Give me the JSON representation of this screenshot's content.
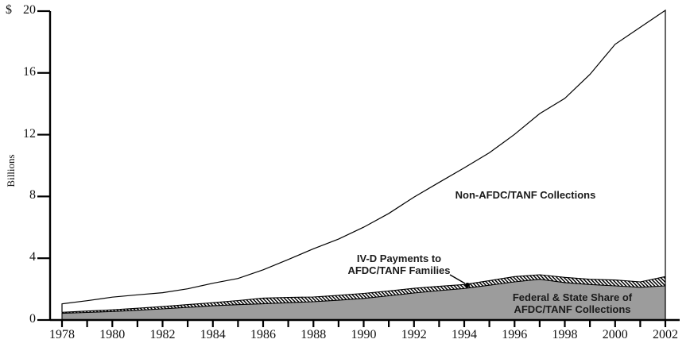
{
  "figure": {
    "y_axis": {
      "currency_prefix": "$",
      "axis_label": "Billions",
      "tick_values": [
        0,
        4,
        8,
        12,
        16,
        20
      ]
    },
    "x_axis": {
      "labeled_years": [
        1978,
        1980,
        1982,
        1984,
        1986,
        1988,
        1990,
        1992,
        1994,
        1996,
        1998,
        2000,
        2002
      ]
    },
    "annotations": {
      "non_afdc": "Non-AFDC/TANF Collections",
      "ivd_line1": "IV-D Payments to",
      "ivd_line2": "AFDC/TANF Families",
      "fed_line1": "Federal & State Share of",
      "fed_line2": "AFDC/TANF Collections"
    },
    "colors": {
      "gray_fill": "#9c9c9c",
      "line": "#000000",
      "hatch_stripe": "#000000",
      "background": "#ffffff"
    }
  },
  "chart_data": {
    "type": "area",
    "title": "",
    "unit": "$ Billions",
    "ylabel": "Billions",
    "xlim": [
      1978,
      2002
    ],
    "ylim": [
      0,
      20
    ],
    "grid": false,
    "legend_position": "in-plot annotations",
    "x": [
      1978,
      1979,
      1980,
      1981,
      1982,
      1983,
      1984,
      1985,
      1986,
      1987,
      1988,
      1989,
      1990,
      1991,
      1992,
      1993,
      1994,
      1995,
      1996,
      1997,
      1998,
      1999,
      2000,
      2001,
      2002
    ],
    "series": [
      {
        "name": "Federal & State Share of AFDC/TANF Collections",
        "style": "solid-gray-area",
        "values": [
          0.43,
          0.49,
          0.55,
          0.63,
          0.72,
          0.82,
          0.92,
          0.99,
          1.05,
          1.12,
          1.18,
          1.28,
          1.4,
          1.57,
          1.75,
          1.9,
          2.04,
          2.25,
          2.47,
          2.64,
          2.42,
          2.3,
          2.21,
          2.12,
          2.21
        ]
      },
      {
        "name": "IV-D Payments to AFDC/TANF Families",
        "style": "hatched-band",
        "note": "band between Federal & State share and total AFDC/TANF collections; top of band (cumulative) listed",
        "values": [
          0.5,
          0.58,
          0.66,
          0.76,
          0.87,
          1.0,
          1.12,
          1.26,
          1.42,
          1.46,
          1.49,
          1.6,
          1.72,
          1.88,
          2.05,
          2.18,
          2.3,
          2.55,
          2.81,
          2.93,
          2.76,
          2.64,
          2.59,
          2.47,
          2.81
        ]
      },
      {
        "name": "Non-AFDC/TANF Collections",
        "style": "white-band-topline",
        "note": "band between AFDC/TANF total and total collections; top line (total collections) listed",
        "values": [
          1.05,
          1.25,
          1.48,
          1.63,
          1.77,
          2.02,
          2.38,
          2.69,
          3.25,
          3.92,
          4.61,
          5.24,
          6.01,
          6.9,
          7.96,
          8.91,
          9.85,
          10.83,
          12.02,
          13.36,
          14.35,
          15.9,
          17.85,
          18.95,
          20.05
        ]
      }
    ]
  }
}
